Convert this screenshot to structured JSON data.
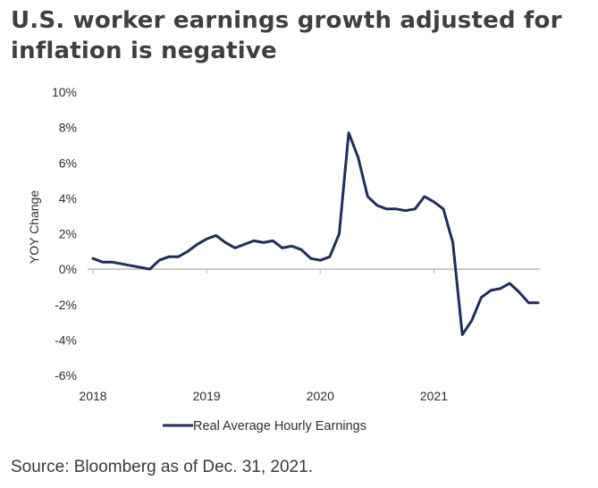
{
  "header": {
    "title_line1": "U.S. worker earnings growth adjusted for",
    "title_line2": "inflation is negative"
  },
  "footer": {
    "source": "Source: Bloomberg as of Dec. 31, 2021."
  },
  "colors": {
    "series": "#1f2d5c",
    "zero_line": "#c8c8c8",
    "axis_text": "#2e2e2e"
  },
  "chart_data": {
    "type": "line",
    "title": "U.S. worker earnings growth adjusted for inflation is negative",
    "ylabel": "YOY Change",
    "xlabel": "",
    "ylim": [
      -6,
      10
    ],
    "xlim": [
      "2018-01",
      "2021-12"
    ],
    "y_ticks": [
      {
        "value": 10,
        "label": "10%"
      },
      {
        "value": 8,
        "label": "8%"
      },
      {
        "value": 6,
        "label": "6%"
      },
      {
        "value": 4,
        "label": "4%"
      },
      {
        "value": 2,
        "label": "2%"
      },
      {
        "value": 0,
        "label": "0%"
      },
      {
        "value": -2,
        "label": "-2%"
      },
      {
        "value": -4,
        "label": "-4%"
      },
      {
        "value": -6,
        "label": "-6%"
      }
    ],
    "x_ticks": [
      {
        "value": "2018-01",
        "label": "2018"
      },
      {
        "value": "2019-01",
        "label": "2019"
      },
      {
        "value": "2020-01",
        "label": "2020"
      },
      {
        "value": "2021-01",
        "label": "2021"
      }
    ],
    "grid": false,
    "zero_line": true,
    "legend": {
      "position": "bottom-center"
    },
    "series": [
      {
        "name": "Real Average Hourly Earnings",
        "x": [
          "2018-01",
          "2018-02",
          "2018-03",
          "2018-04",
          "2018-05",
          "2018-06",
          "2018-07",
          "2018-08",
          "2018-09",
          "2018-10",
          "2018-11",
          "2018-12",
          "2019-01",
          "2019-02",
          "2019-03",
          "2019-04",
          "2019-05",
          "2019-06",
          "2019-07",
          "2019-08",
          "2019-09",
          "2019-10",
          "2019-11",
          "2019-12",
          "2020-01",
          "2020-02",
          "2020-03",
          "2020-04",
          "2020-05",
          "2020-06",
          "2020-07",
          "2020-08",
          "2020-09",
          "2020-10",
          "2020-11",
          "2020-12",
          "2021-01",
          "2021-02",
          "2021-03",
          "2021-04",
          "2021-05",
          "2021-06",
          "2021-07",
          "2021-08",
          "2021-09",
          "2021-10",
          "2021-11",
          "2021-12"
        ],
        "values": [
          0.6,
          0.4,
          0.4,
          0.3,
          0.2,
          0.1,
          0.0,
          0.5,
          0.7,
          0.7,
          1.0,
          1.4,
          1.7,
          1.9,
          1.5,
          1.2,
          1.4,
          1.6,
          1.5,
          1.6,
          1.2,
          1.3,
          1.1,
          0.6,
          0.5,
          0.7,
          2.0,
          7.7,
          6.3,
          4.1,
          3.6,
          3.4,
          3.4,
          3.3,
          3.4,
          4.1,
          3.8,
          3.4,
          1.5,
          -3.7,
          -2.9,
          -1.6,
          -1.2,
          -1.1,
          -0.8,
          -1.3,
          -1.9,
          -1.9
        ]
      }
    ]
  }
}
